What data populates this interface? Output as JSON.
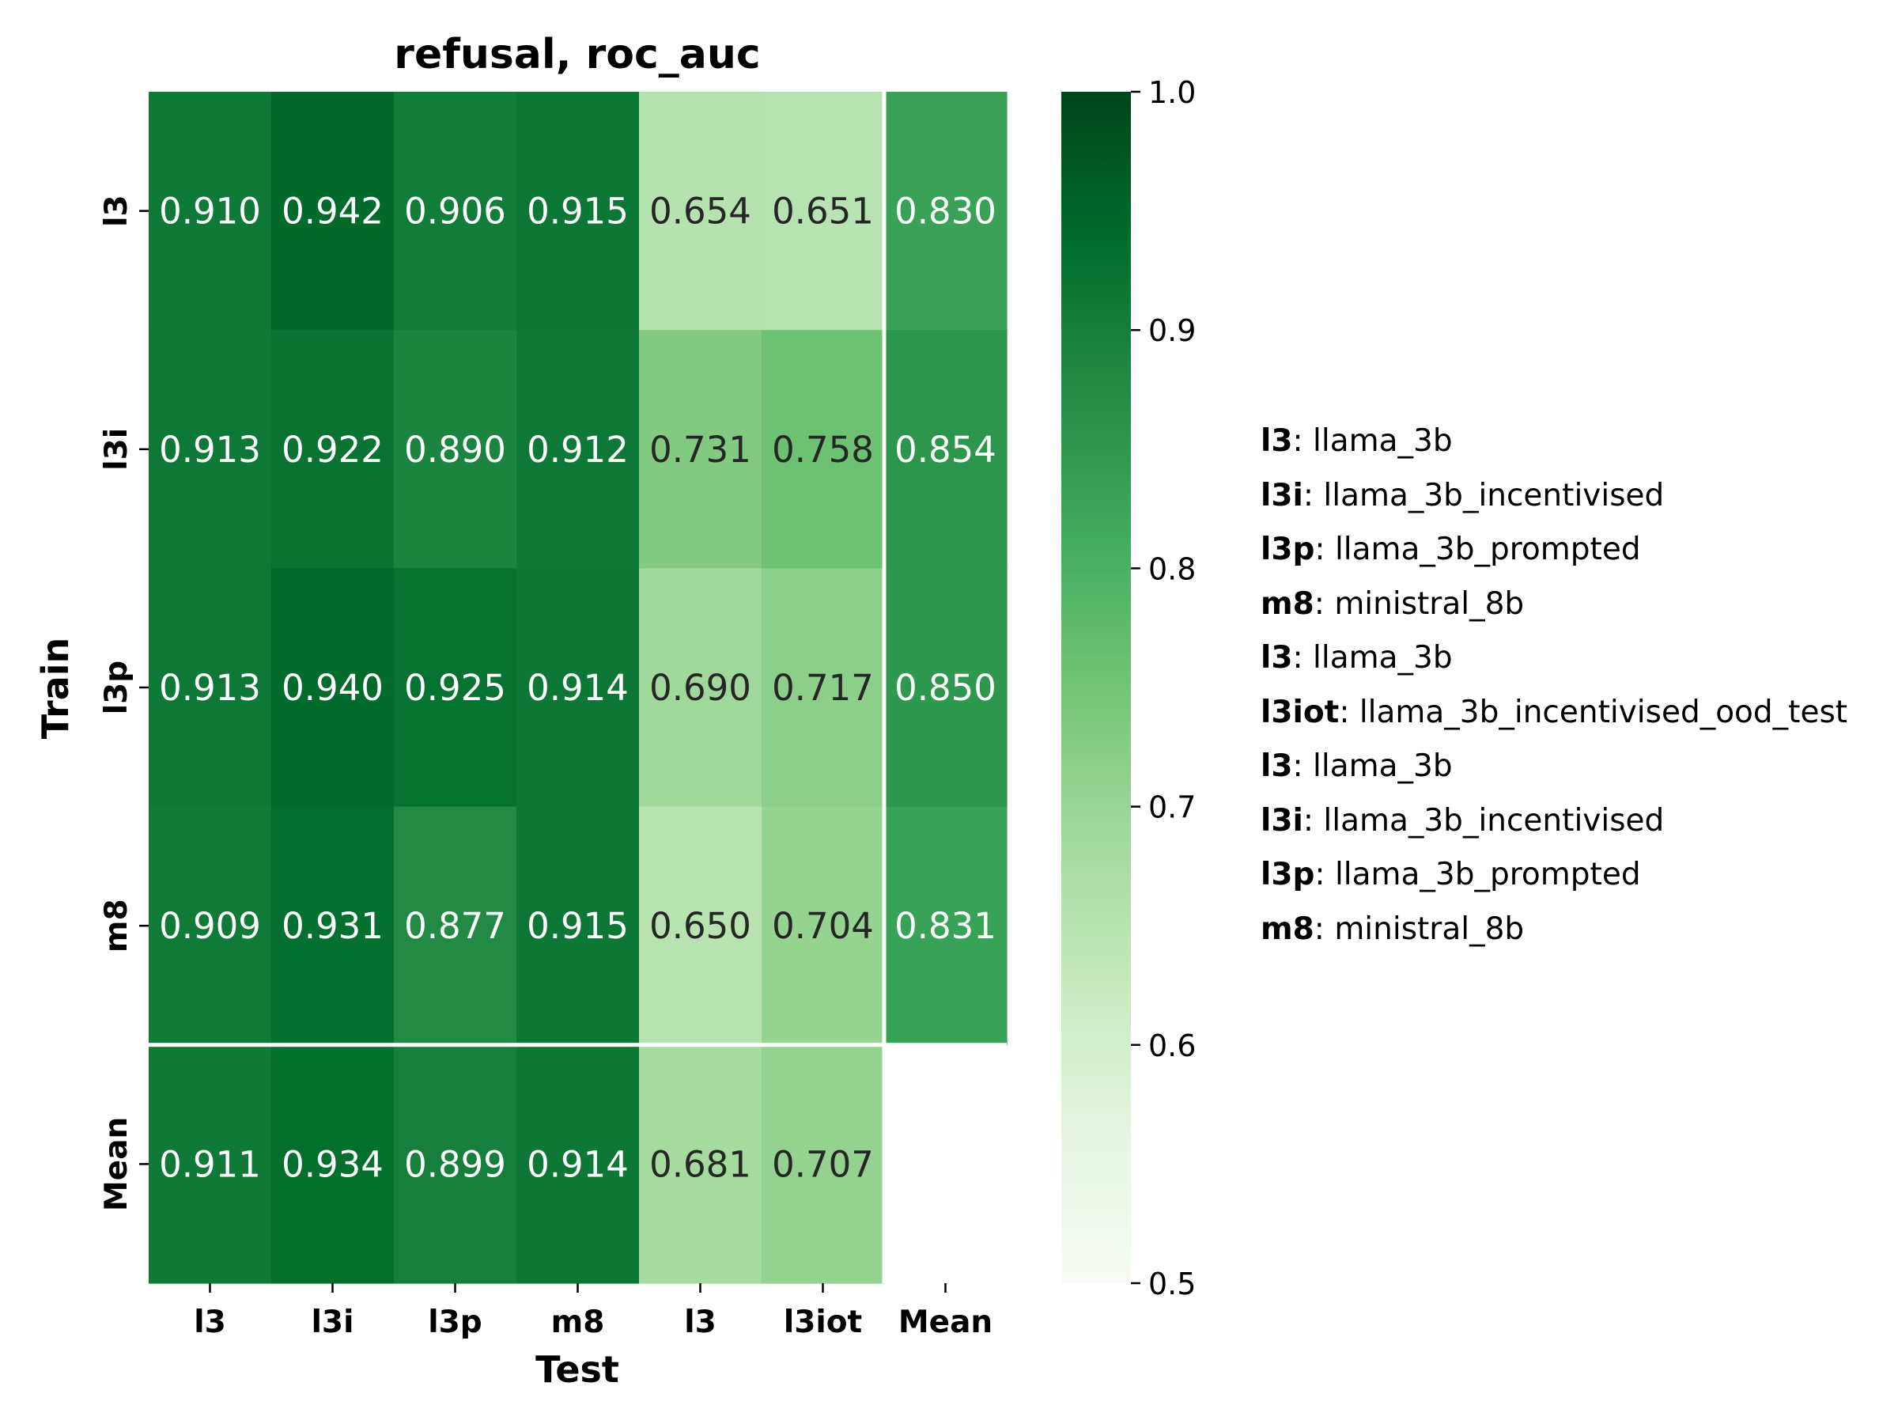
{
  "chart_data": {
    "type": "heatmap",
    "title": "refusal, roc_auc",
    "xlabel": "Test",
    "ylabel": "Train",
    "x_categories": [
      "l3",
      "l3i",
      "l3p",
      "m8",
      "l3",
      "l3iot",
      "Mean"
    ],
    "y_categories": [
      "l3",
      "l3i",
      "l3p",
      "m8",
      "Mean"
    ],
    "values": [
      [
        0.91,
        0.942,
        0.906,
        0.915,
        0.654,
        0.651,
        0.83
      ],
      [
        0.913,
        0.922,
        0.89,
        0.912,
        0.731,
        0.758,
        0.854
      ],
      [
        0.913,
        0.94,
        0.925,
        0.914,
        0.69,
        0.717,
        0.85
      ],
      [
        0.909,
        0.931,
        0.877,
        0.915,
        0.65,
        0.704,
        0.831
      ],
      [
        0.911,
        0.934,
        0.899,
        0.914,
        0.681,
        0.707,
        null
      ]
    ],
    "colorbar": {
      "min": 0.5,
      "max": 1.0,
      "ticks": [
        "0.5",
        "0.6",
        "0.7",
        "0.8",
        "0.9",
        "1.0"
      ],
      "colormap": "Greens"
    },
    "legend": {
      "placement": "right",
      "items": [
        {
          "key": "l3",
          "value": "llama_3b"
        },
        {
          "key": "l3i",
          "value": "llama_3b_incentivised"
        },
        {
          "key": "l3p",
          "value": "llama_3b_prompted"
        },
        {
          "key": "m8",
          "value": "ministral_8b"
        },
        {
          "key": "l3",
          "value": "llama_3b"
        },
        {
          "key": "l3iot",
          "value": "llama_3b_incentivised_ood_test"
        },
        {
          "key": "l3",
          "value": "llama_3b"
        },
        {
          "key": "l3i",
          "value": "llama_3b_incentivised"
        },
        {
          "key": "l3p",
          "value": "llama_3b_prompted"
        },
        {
          "key": "m8",
          "value": "ministral_8b"
        }
      ]
    }
  }
}
